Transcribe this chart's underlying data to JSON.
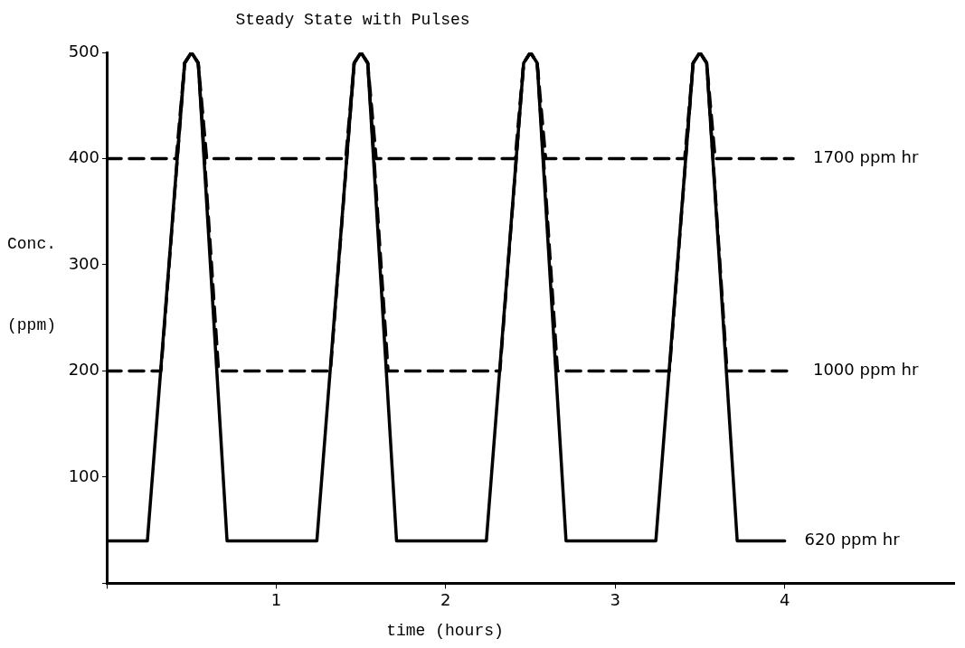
{
  "chart_data": {
    "type": "line",
    "title": "Steady State with Pulses",
    "xlabel": "time (hours)",
    "ylabel": "Conc.\n(ppm)",
    "xlim": [
      0,
      5
    ],
    "xticks": [
      {
        "value": 0,
        "label": null
      },
      1,
      2,
      3,
      4
    ],
    "ylim": [
      0,
      500
    ],
    "yticks": [
      {
        "value": 0,
        "label": null
      },
      100,
      200,
      300,
      400,
      500
    ],
    "grid": false,
    "legend": false,
    "marker": "none",
    "series": [
      {
        "name": "1700 ppm hr",
        "color": "#000000",
        "line_style": "dashed",
        "x": [
          0,
          0.41,
          0.46,
          0.5,
          0.54,
          0.59,
          1.41,
          1.46,
          1.5,
          1.54,
          1.59,
          2.41,
          2.46,
          2.5,
          2.54,
          2.59,
          3.41,
          3.46,
          3.5,
          3.54,
          3.59,
          4.05
        ],
        "values": [
          400,
          400,
          490,
          500,
          490,
          400,
          400,
          490,
          500,
          490,
          400,
          400,
          490,
          500,
          490,
          400,
          400,
          490,
          500,
          490,
          400,
          400
        ]
      },
      {
        "name": "1000 ppm hr",
        "color": "#000000",
        "line_style": "dashed",
        "x": [
          0,
          0.32,
          0.46,
          0.5,
          0.54,
          0.66,
          1.32,
          1.46,
          1.5,
          1.54,
          1.66,
          2.32,
          2.46,
          2.5,
          2.54,
          2.66,
          3.32,
          3.46,
          3.5,
          3.54,
          3.66,
          4.05
        ],
        "values": [
          200,
          200,
          490,
          500,
          490,
          200,
          200,
          490,
          500,
          490,
          200,
          200,
          490,
          500,
          490,
          200,
          200,
          490,
          500,
          490,
          200,
          200
        ]
      },
      {
        "name": "620 ppm hr",
        "color": "#000000",
        "line_style": "solid",
        "x": [
          0,
          0.24,
          0.46,
          0.5,
          0.54,
          0.71,
          1.24,
          1.46,
          1.5,
          1.54,
          1.71,
          2.24,
          2.46,
          2.5,
          2.54,
          2.71,
          3.24,
          3.46,
          3.5,
          3.54,
          3.72,
          4.0
        ],
        "values": [
          40,
          40,
          490,
          500,
          490,
          40,
          40,
          490,
          500,
          490,
          40,
          40,
          490,
          500,
          490,
          40,
          40,
          490,
          500,
          490,
          40,
          40
        ]
      }
    ]
  }
}
